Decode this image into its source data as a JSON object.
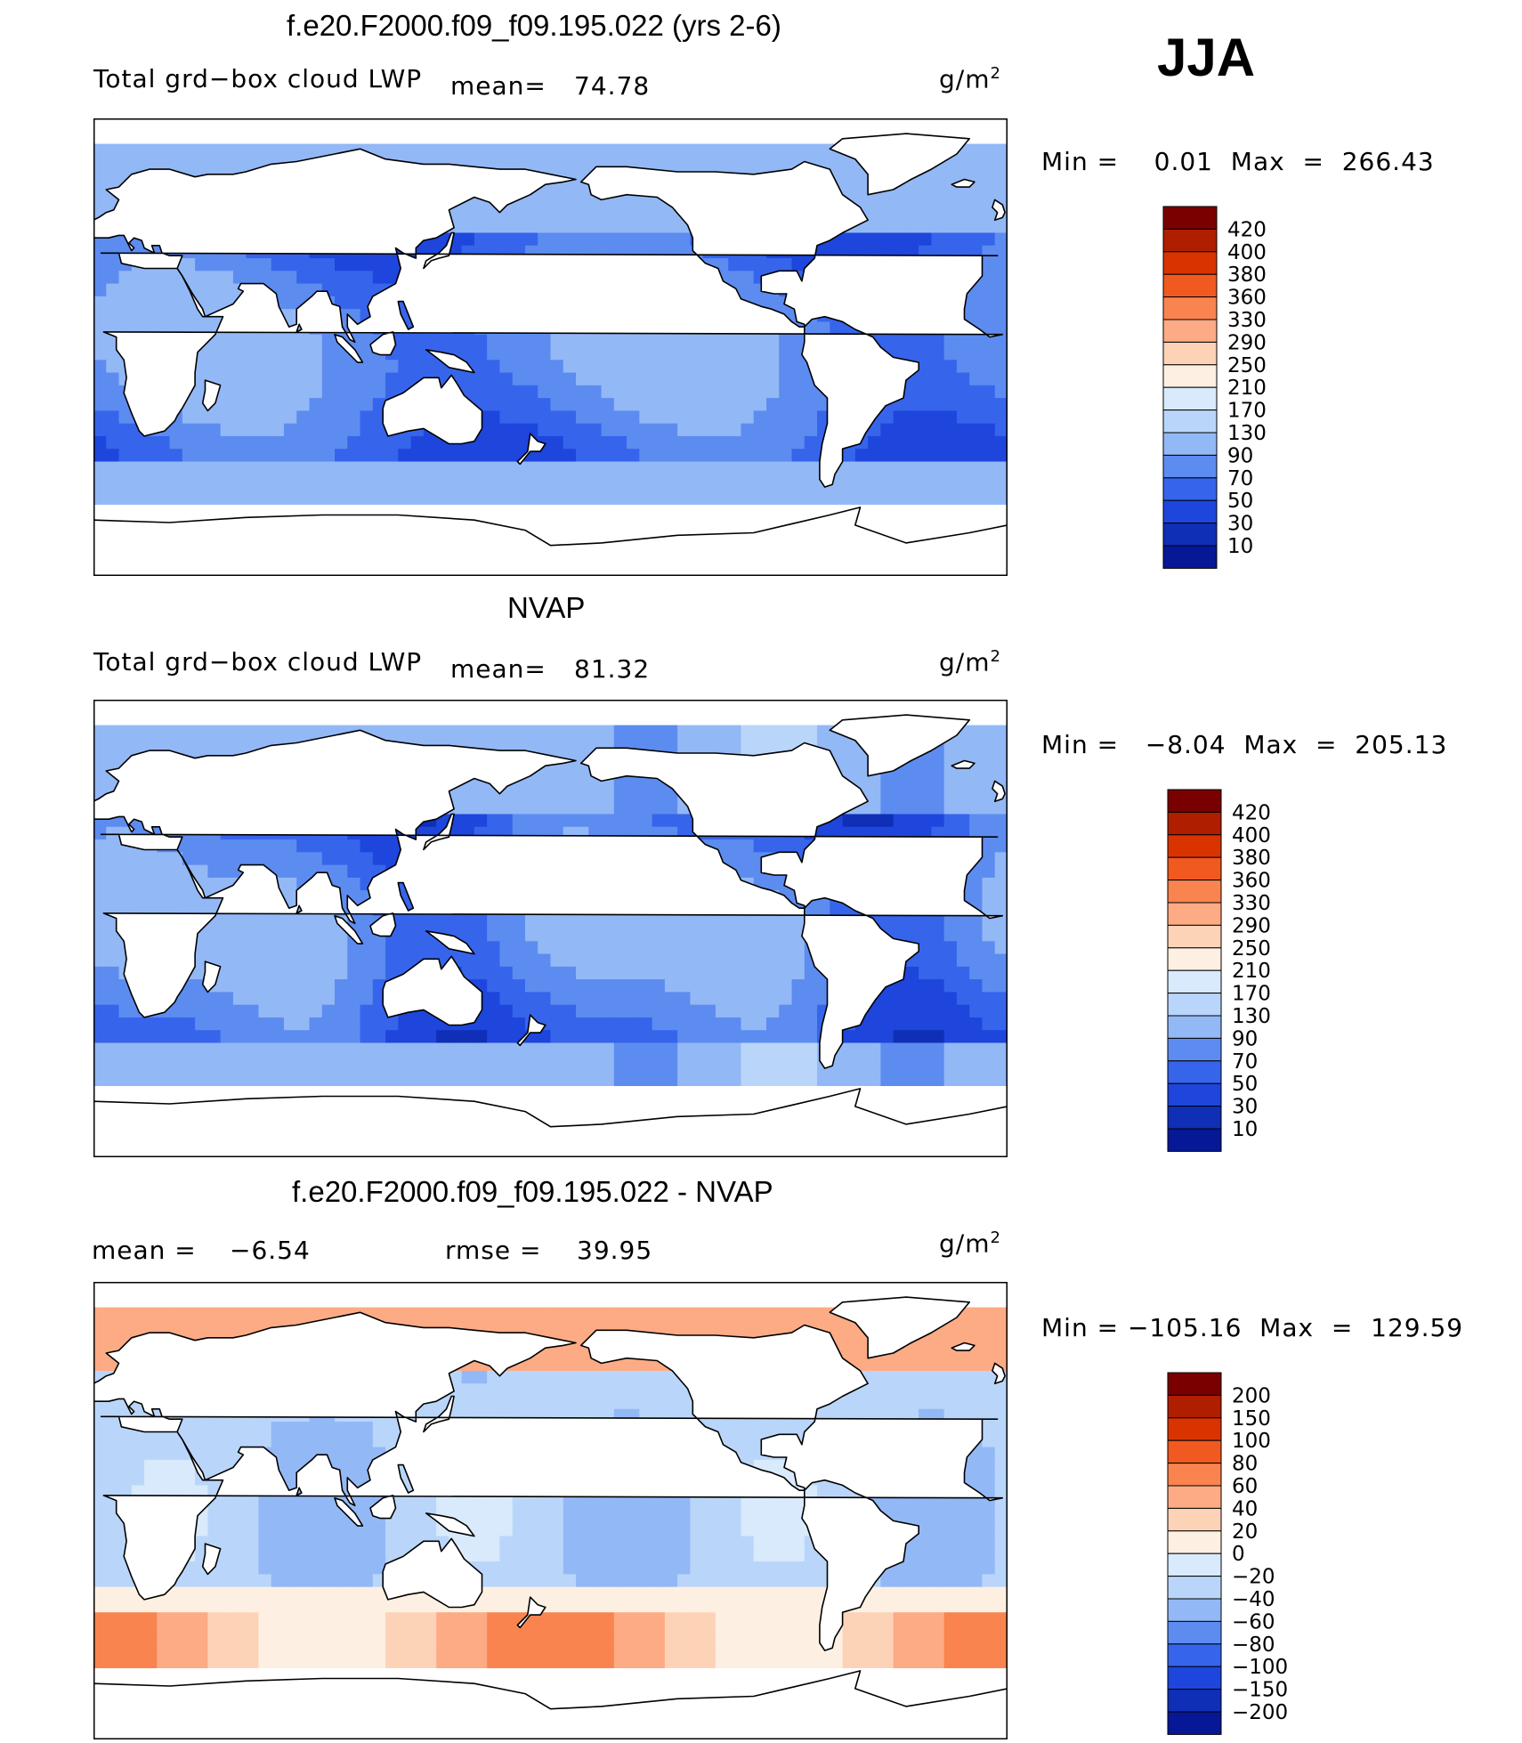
{
  "season": "JJA",
  "units": "g/m",
  "units_sup": "2",
  "panels": [
    {
      "title": "f.e20.F2000.f09_f09.195.022 (yrs 2-6)",
      "left_label": "Total grd−box cloud LWP",
      "mean_label": "mean=",
      "mean_value": "74.78",
      "minmax": "Min =    0.01  Max  =  266.43",
      "levels": [
        "420",
        "400",
        "380",
        "360",
        "330",
        "290",
        "250",
        "210",
        "170",
        "130",
        "90",
        "70",
        "50",
        "30",
        "10"
      ],
      "colors": [
        "#7a0000",
        "#b01e00",
        "#d93400",
        "#f05a20",
        "#f9844f",
        "#fcab85",
        "#fdd3b8",
        "#fdf0e2",
        "#d8eafb",
        "#b9d6fa",
        "#93b8f6",
        "#5d8cf0",
        "#3665ec",
        "#1e46dc",
        "#0f2fb6",
        "#061896"
      ],
      "field": "model"
    },
    {
      "title": "NVAP",
      "left_label": "Total grd−box cloud LWP",
      "mean_label": "mean=",
      "mean_value": "81.32",
      "minmax": "Min =   −8.04  Max  =  205.13",
      "levels": [
        "420",
        "400",
        "380",
        "360",
        "330",
        "290",
        "250",
        "210",
        "170",
        "130",
        "90",
        "70",
        "50",
        "30",
        "10"
      ],
      "colors": [
        "#7a0000",
        "#b01e00",
        "#d93400",
        "#f05a20",
        "#f9844f",
        "#fcab85",
        "#fdd3b8",
        "#fdf0e2",
        "#d8eafb",
        "#b9d6fa",
        "#93b8f6",
        "#5d8cf0",
        "#3665ec",
        "#1e46dc",
        "#0f2fb6",
        "#061896"
      ],
      "field": "obs"
    },
    {
      "title": "f.e20.F2000.f09_f09.195.022 - NVAP",
      "mean_label": "mean =",
      "mean_value": "−6.54",
      "rmse_label": "rmse =",
      "rmse_value": "39.95",
      "minmax": "Min = −105.16  Max  =  129.59",
      "levels": [
        "200",
        "150",
        "100",
        "80",
        "60",
        "40",
        "20",
        "0",
        "−20",
        "−40",
        "−60",
        "−80",
        "−100",
        "−150",
        "−200"
      ],
      "colors": [
        "#7a0000",
        "#b01e00",
        "#d93400",
        "#f05a20",
        "#f9844f",
        "#fcab85",
        "#fdd3b8",
        "#fdf0e2",
        "#d8eafb",
        "#b9d6fa",
        "#93b8f6",
        "#5d8cf0",
        "#3665ec",
        "#1e46dc",
        "#0f2fb6",
        "#061896"
      ],
      "field": "diff"
    }
  ]
}
